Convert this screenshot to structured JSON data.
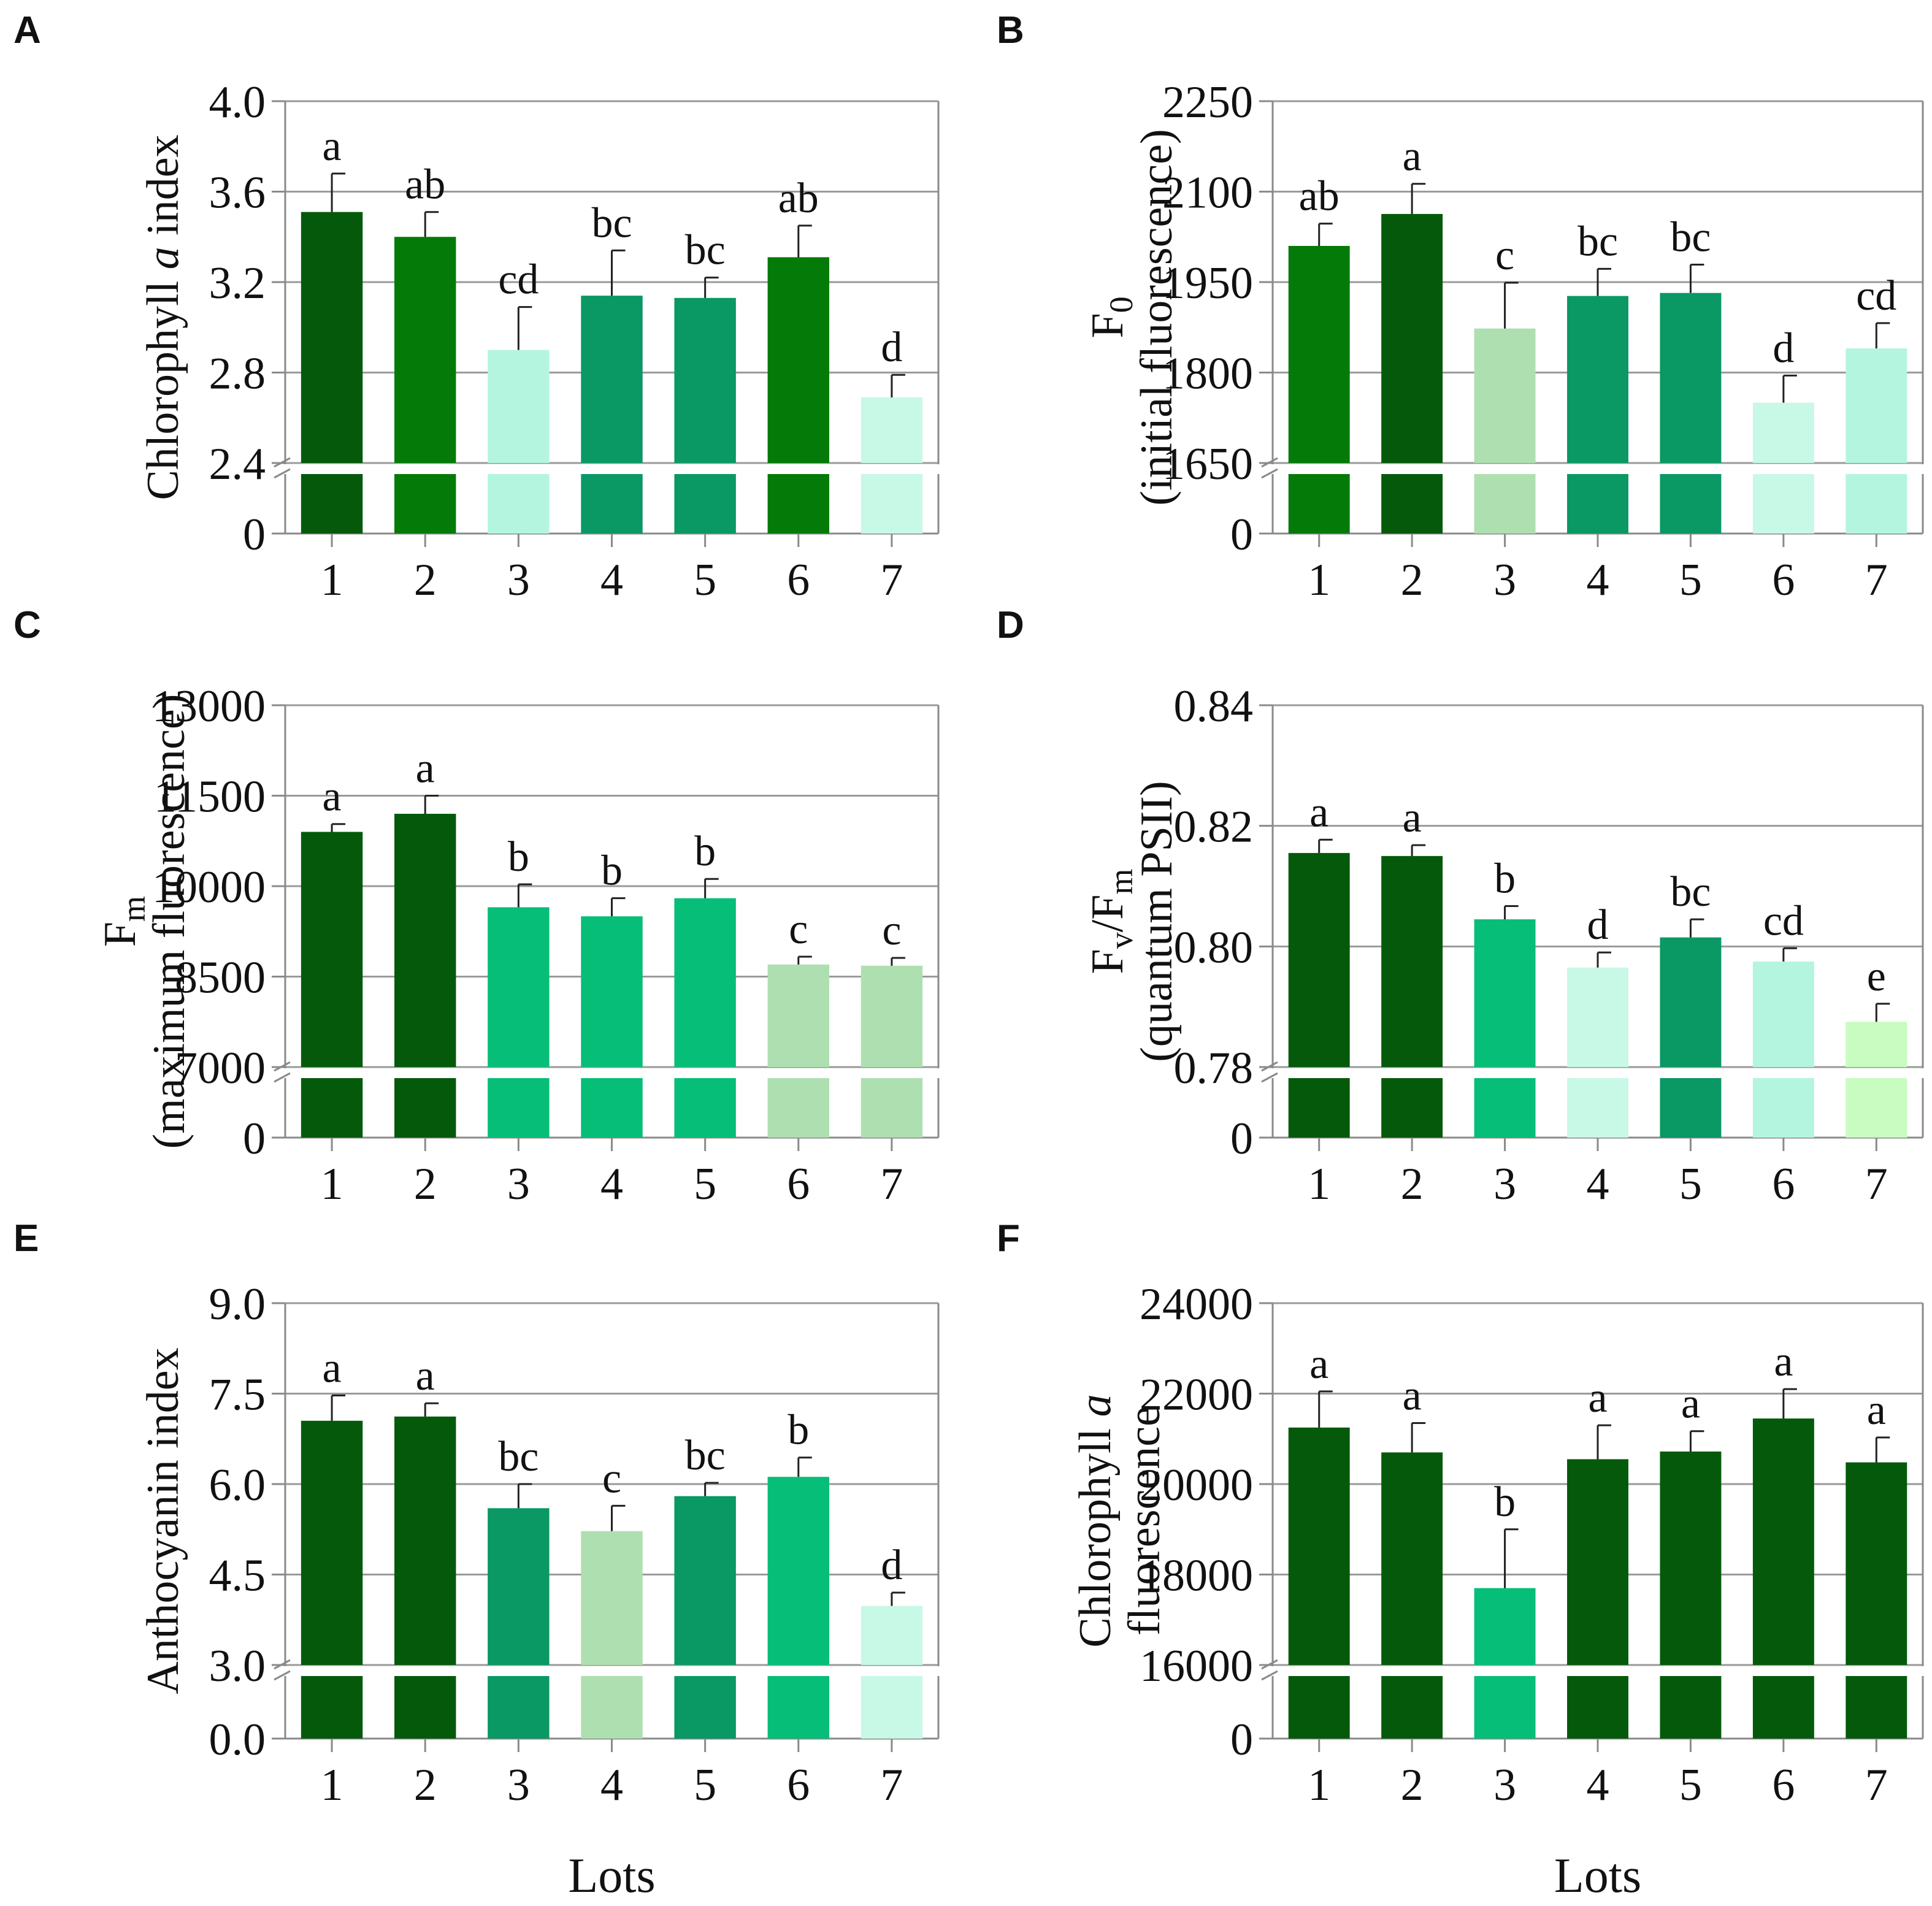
{
  "colors": {
    "c1": "#045a0a",
    "c2": "#047a08",
    "c3": "#0a9864",
    "c4": "#06be78",
    "c5": "#aedfb0",
    "c6": "#b4f5df",
    "c7": "#c8f8e6",
    "c8": "#c8fcc0",
    "grid": "#9a9a9a",
    "axis": "#8a8a8a",
    "error": "#222222"
  },
  "chart_data": [
    {
      "id": "A",
      "type": "bar",
      "panel_label": "A",
      "ylabel_parts": [
        "Chlorophyll ",
        "a",
        " index"
      ],
      "ylabel_lines": [],
      "yticks": [
        "2.4",
        "2.8",
        "3.2",
        "3.6",
        "4.0"
      ],
      "ylim": [
        2.4,
        4.0
      ],
      "y_zero_label": "0",
      "categories": [
        "1",
        "2",
        "3",
        "4",
        "5",
        "6",
        "7"
      ],
      "values": [
        3.51,
        3.4,
        2.9,
        3.14,
        3.13,
        3.31,
        2.69
      ],
      "errors": [
        0.17,
        0.11,
        0.19,
        0.2,
        0.09,
        0.14,
        0.1
      ],
      "significance": [
        "a",
        "ab",
        "cd",
        "bc",
        "bc",
        "ab",
        "d"
      ],
      "bar_colors": [
        "c1",
        "c2",
        "c6",
        "c3",
        "c3",
        "c2",
        "c7"
      ],
      "xlabel": ""
    },
    {
      "id": "B",
      "type": "bar",
      "panel_label": "B",
      "ylabel_parts": [],
      "ylabel_lines": [
        "F",
        "(initial fluorescence)"
      ],
      "ylabel_sub": "0",
      "yticks": [
        "1650",
        "1800",
        "1950",
        "2100",
        "2250"
      ],
      "ylim": [
        1650,
        2250
      ],
      "y_zero_label": "0",
      "categories": [
        "1",
        "2",
        "3",
        "4",
        "5",
        "6",
        "7"
      ],
      "values": [
        2010,
        2063,
        1873,
        1927,
        1932,
        1750,
        1840
      ],
      "errors": [
        37,
        50,
        76,
        45,
        47,
        45,
        42
      ],
      "significance": [
        "ab",
        "a",
        "c",
        "bc",
        "bc",
        "d",
        "cd"
      ],
      "bar_colors": [
        "c2",
        "c1",
        "c5",
        "c3",
        "c3",
        "c7",
        "c6"
      ],
      "xlabel": ""
    },
    {
      "id": "C",
      "type": "bar",
      "panel_label": "C",
      "ylabel_parts": [],
      "ylabel_lines": [
        "F",
        "(maximum fluorescence)"
      ],
      "ylabel_sub": "m",
      "yticks": [
        "7000",
        "8500",
        "10000",
        "11500",
        "13000"
      ],
      "ylim": [
        7000,
        13000
      ],
      "y_zero_label": "0",
      "categories": [
        "1",
        "2",
        "3",
        "4",
        "5",
        "6",
        "7"
      ],
      "values": [
        10900,
        11200,
        9650,
        9500,
        9800,
        8700,
        8680
      ],
      "errors": [
        130,
        300,
        380,
        300,
        320,
        130,
        130
      ],
      "significance": [
        "a",
        "a",
        "b",
        "b",
        "b",
        "c",
        "c"
      ],
      "bar_colors": [
        "c1",
        "c1",
        "c4",
        "c4",
        "c4",
        "c5",
        "c5"
      ],
      "xlabel": ""
    },
    {
      "id": "D",
      "type": "bar",
      "panel_label": "D",
      "ylabel_parts": [],
      "ylabel_lines": [
        "F/F",
        "(quantum PSII)"
      ],
      "ylabel_sub": "v",
      "ylabel_sub2": "m",
      "yticks": [
        "0.78",
        "0.80",
        "0.82",
        "0.84"
      ],
      "ylim": [
        0.78,
        0.84
      ],
      "y_zero_label": "0",
      "categories": [
        "1",
        "2",
        "3",
        "4",
        "5",
        "6",
        "7"
      ],
      "values": [
        0.8155,
        0.815,
        0.8045,
        0.7965,
        0.8015,
        0.7975,
        0.7875
      ],
      "errors": [
        0.0022,
        0.0018,
        0.0022,
        0.0025,
        0.003,
        0.0022,
        0.003
      ],
      "significance": [
        "a",
        "a",
        "b",
        "d",
        "bc",
        "cd",
        "e"
      ],
      "bar_colors": [
        "c1",
        "c1",
        "c4",
        "c7",
        "c3",
        "c6",
        "c8"
      ],
      "xlabel": ""
    },
    {
      "id": "E",
      "type": "bar",
      "panel_label": "E",
      "ylabel_parts": [
        "Anthocyanin index"
      ],
      "ylabel_lines": [],
      "yticks": [
        "3.0",
        "4.5",
        "6.0",
        "7.5",
        "9.0"
      ],
      "ylim": [
        3.0,
        9.0
      ],
      "y_zero_label": "0.0",
      "categories": [
        "1",
        "2",
        "3",
        "4",
        "5",
        "6",
        "7"
      ],
      "values": [
        7.05,
        7.12,
        5.6,
        5.22,
        5.8,
        6.12,
        3.98
      ],
      "errors": [
        0.42,
        0.22,
        0.4,
        0.42,
        0.22,
        0.32,
        0.22
      ],
      "significance": [
        "a",
        "a",
        "bc",
        "c",
        "bc",
        "b",
        "d"
      ],
      "bar_colors": [
        "c1",
        "c1",
        "c3",
        "c5",
        "c3",
        "c4",
        "c7"
      ],
      "xlabel": "Lots"
    },
    {
      "id": "F",
      "type": "bar",
      "panel_label": "F",
      "ylabel_parts": [],
      "ylabel_lines": [],
      "ylabel_two": [
        "Chlorophyll ",
        "a",
        "fluorescence"
      ],
      "yticks": [
        "16000",
        "18000",
        "20000",
        "22000",
        "24000"
      ],
      "ylim": [
        16000,
        24000
      ],
      "y_zero_label": "0",
      "categories": [
        "1",
        "2",
        "3",
        "4",
        "5",
        "6",
        "7"
      ],
      "values": [
        21250,
        20700,
        17700,
        20550,
        20720,
        21450,
        20480
      ],
      "errors": [
        800,
        650,
        1300,
        750,
        450,
        650,
        550
      ],
      "significance": [
        "a",
        "a",
        "b",
        "a",
        "a",
        "a",
        "a"
      ],
      "bar_colors": [
        "c1",
        "c1",
        "c4",
        "c1",
        "c1",
        "c1",
        "c1"
      ],
      "xlabel": "Lots"
    }
  ]
}
